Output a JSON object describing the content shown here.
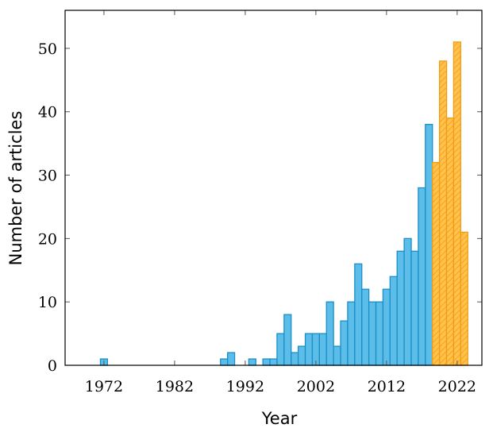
{
  "chart_data": {
    "type": "bar",
    "xlabel": "Year",
    "ylabel": "Number of articles",
    "xlim": [
      1967,
      2026
    ],
    "ylim": [
      0,
      56
    ],
    "x_ticks": [
      1972,
      1982,
      1992,
      2002,
      2012,
      2022
    ],
    "y_ticks": [
      0,
      10,
      20,
      30,
      40,
      50
    ],
    "grid": false,
    "series": [
      {
        "color": "#5bbde8",
        "stroke": "#1a8fc9",
        "pattern": "solid",
        "points": [
          {
            "x": 1972,
            "y": 1
          },
          {
            "x": 1989,
            "y": 1
          },
          {
            "x": 1990,
            "y": 2
          },
          {
            "x": 1993,
            "y": 1
          },
          {
            "x": 1995,
            "y": 1
          },
          {
            "x": 1996,
            "y": 1
          },
          {
            "x": 1997,
            "y": 5
          },
          {
            "x": 1998,
            "y": 8
          },
          {
            "x": 1999,
            "y": 2
          },
          {
            "x": 2000,
            "y": 3
          },
          {
            "x": 2001,
            "y": 5
          },
          {
            "x": 2002,
            "y": 5
          },
          {
            "x": 2003,
            "y": 5
          },
          {
            "x": 2004,
            "y": 10
          },
          {
            "x": 2005,
            "y": 3
          },
          {
            "x": 2006,
            "y": 7
          },
          {
            "x": 2007,
            "y": 10
          },
          {
            "x": 2008,
            "y": 16
          },
          {
            "x": 2009,
            "y": 12
          },
          {
            "x": 2010,
            "y": 10
          },
          {
            "x": 2011,
            "y": 10
          },
          {
            "x": 2012,
            "y": 12
          },
          {
            "x": 2013,
            "y": 14
          },
          {
            "x": 2014,
            "y": 18
          },
          {
            "x": 2015,
            "y": 20
          },
          {
            "x": 2016,
            "y": 18
          },
          {
            "x": 2017,
            "y": 28
          },
          {
            "x": 2018,
            "y": 38
          }
        ]
      },
      {
        "color": "#ffc24d",
        "stroke": "#f39a16",
        "pattern": "hatched",
        "points": [
          {
            "x": 2019,
            "y": 32
          },
          {
            "x": 2020,
            "y": 48
          },
          {
            "x": 2021,
            "y": 39
          },
          {
            "x": 2022,
            "y": 51
          },
          {
            "x": 2023,
            "y": 21
          }
        ]
      }
    ]
  }
}
